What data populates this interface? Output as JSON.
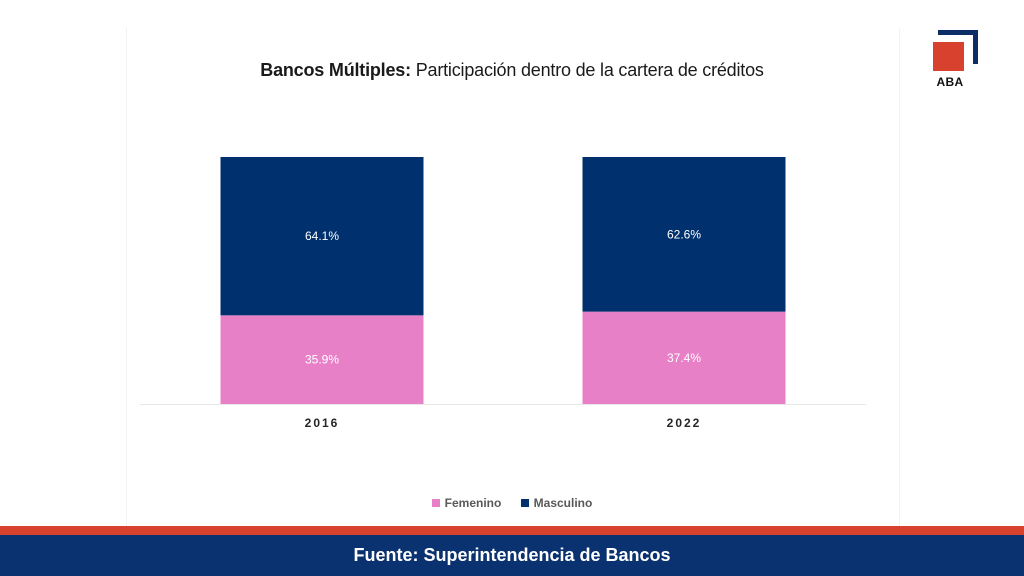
{
  "header": {
    "title_bold": "Bancos Múltiples:",
    "title_rest": " Participación dentro de la cartera de créditos"
  },
  "logo": {
    "text": "ABA",
    "colors": {
      "square": "#d9412f",
      "frame": "#0b2e66"
    }
  },
  "chart_data": {
    "type": "bar",
    "stacked": true,
    "title": "Bancos Múltiples: Participación dentro de la cartera de créditos",
    "categories": [
      "2016",
      "2022"
    ],
    "series": [
      {
        "name": "Femenino",
        "values": [
          35.9,
          37.4
        ],
        "labels": [
          "35.9%",
          "37.4%"
        ],
        "color": "#e880c8"
      },
      {
        "name": "Masculino",
        "values": [
          64.1,
          62.6
        ],
        "labels": [
          "64.1%",
          "62.6%"
        ],
        "color": "#00306e"
      }
    ],
    "ylim": [
      0,
      100
    ],
    "xlabel": "",
    "ylabel": "",
    "grid": false,
    "legend_position": "bottom"
  },
  "footer": {
    "source": "Fuente: Superintendencia de Bancos"
  }
}
